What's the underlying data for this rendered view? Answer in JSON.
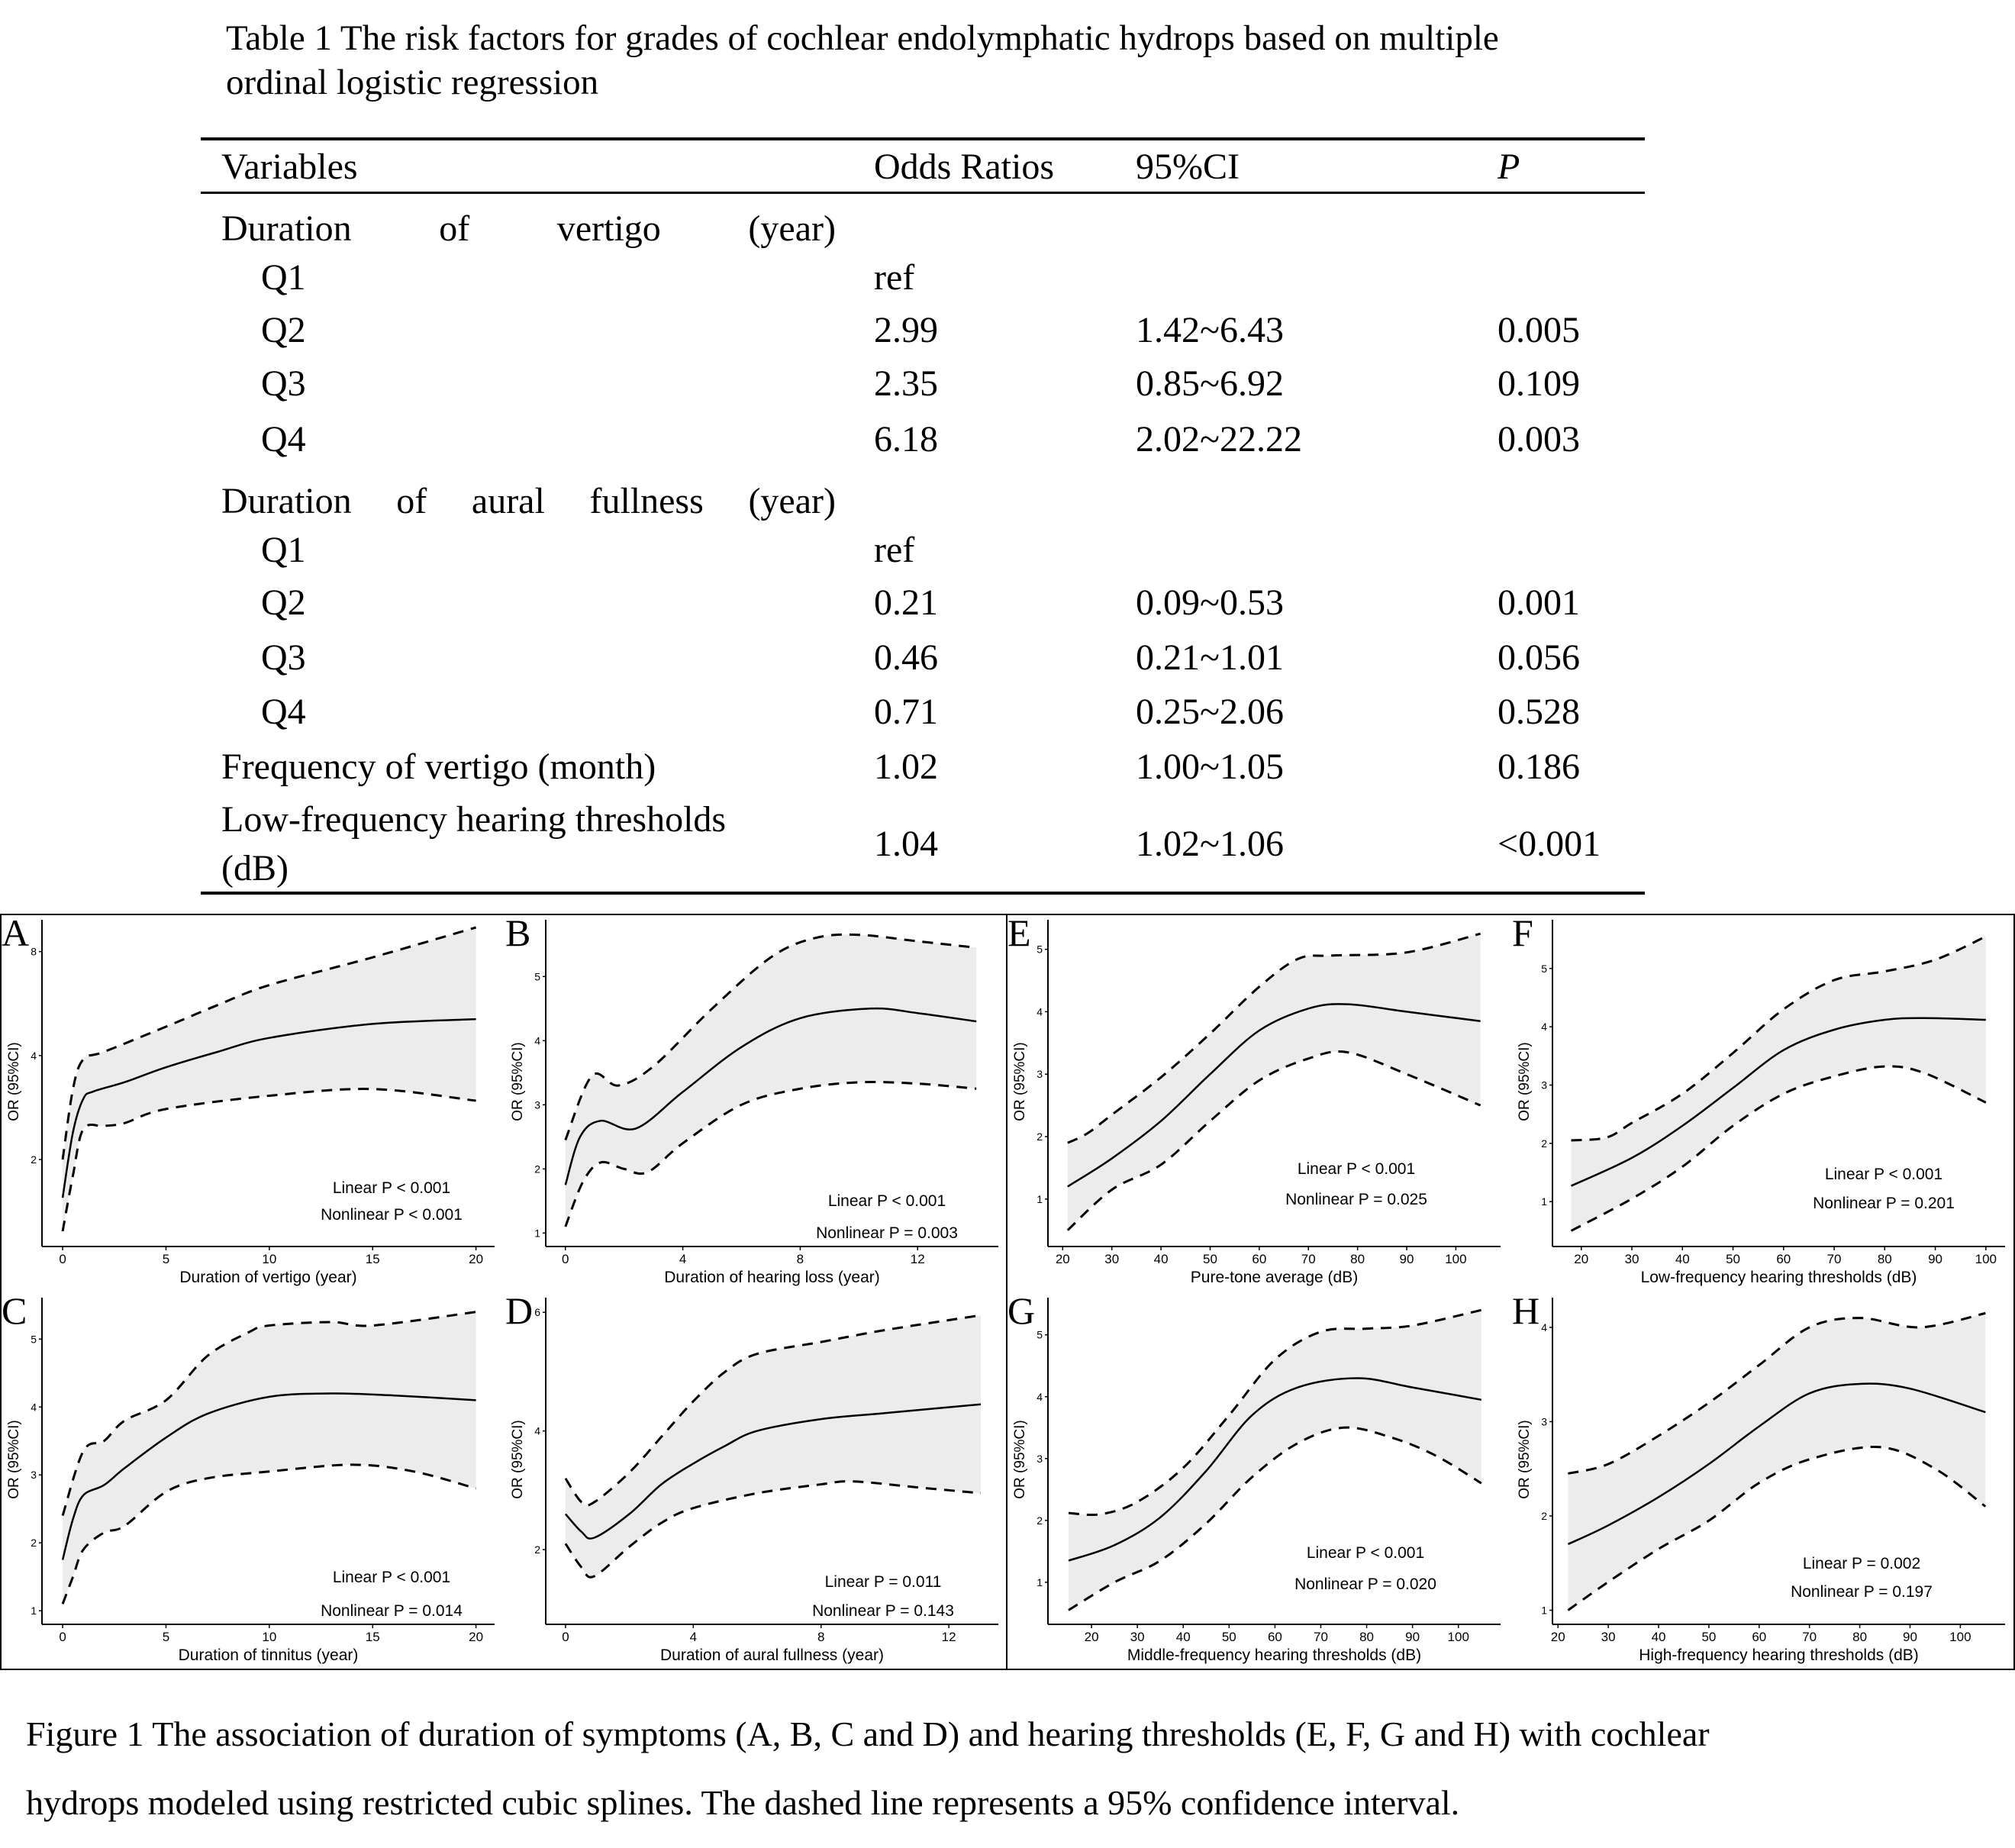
{
  "table": {
    "title_line1": "Table 1 The risk factors for grades of cochlear endolymphatic hydrops based on multiple",
    "title_line2": "ordinal logistic regression",
    "headers": {
      "variables": "Variables",
      "or": "Odds Ratios",
      "ci": "95%CI",
      "p": "P"
    },
    "group1": {
      "words": [
        "Duration",
        "of",
        "vertigo",
        "(year)"
      ],
      "rows": [
        {
          "label": "Q1",
          "or": "ref",
          "ci": "",
          "p": ""
        },
        {
          "label": "Q2",
          "or": "2.99",
          "ci": "1.42~6.43",
          "p": "0.005"
        },
        {
          "label": "Q3",
          "or": "2.35",
          "ci": "0.85~6.92",
          "p": "0.109"
        },
        {
          "label": "Q4",
          "or": "6.18",
          "ci": "2.02~22.22",
          "p": "0.003"
        }
      ]
    },
    "group2": {
      "words": [
        "Duration",
        "of",
        "aural",
        "fullness",
        "(year)"
      ],
      "rows": [
        {
          "label": "Q1",
          "or": "ref",
          "ci": "",
          "p": ""
        },
        {
          "label": "Q2",
          "or": "0.21",
          "ci": "0.09~0.53",
          "p": "0.001"
        },
        {
          "label": "Q3",
          "or": "0.46",
          "ci": "0.21~1.01",
          "p": "0.056"
        },
        {
          "label": "Q4",
          "or": "0.71",
          "ci": "0.25~2.06",
          "p": "0.528"
        }
      ]
    },
    "freq_row": {
      "label": "Frequency of vertigo (month)",
      "or": "1.02",
      "ci": "1.00~1.05",
      "p": "0.186"
    },
    "lowfreq_row": {
      "label_line1": "Low-frequency hearing thresholds",
      "label_line2": "(dB)",
      "or": "1.04",
      "ci": "1.02~1.06",
      "p": "<0.001"
    }
  },
  "caption": {
    "line1": "Figure 1 The association of duration of symptoms (A, B, C and D) and hearing thresholds (E, F, G and H) with cochlear",
    "line2": "hydrops modeled using restricted cubic splines. The dashed line represents a 95% confidence interval."
  },
  "chart_data": [
    {
      "panel": "A",
      "type": "line",
      "xlabel": "Duration of vertigo (year)",
      "ylabel": "OR (95%CI)",
      "yscale": "log",
      "xlim": [
        -1,
        20.9
      ],
      "ylim": [
        1.12,
        10.3
      ],
      "xticks": [
        0,
        5,
        10,
        15,
        20
      ],
      "yticks": [
        2,
        4,
        8
      ],
      "linear_p": "Linear P < 0.001",
      "nonlinear_p": "Nonlinear P < 0.001",
      "estimate": [
        [
          0,
          1.55
        ],
        [
          0.5,
          2.4
        ],
        [
          1,
          3.0
        ],
        [
          1.5,
          3.15
        ],
        [
          3,
          3.35
        ],
        [
          5,
          3.7
        ],
        [
          7.5,
          4.1
        ],
        [
          10,
          4.5
        ],
        [
          15,
          4.94
        ],
        [
          20,
          5.1
        ]
      ],
      "upper": [
        [
          0,
          2.0
        ],
        [
          0.5,
          3.2
        ],
        [
          1,
          3.9
        ],
        [
          2,
          4.1
        ],
        [
          5,
          4.85
        ],
        [
          7.5,
          5.6
        ],
        [
          10,
          6.4
        ],
        [
          15,
          7.7
        ],
        [
          20,
          9.4
        ]
      ],
      "lower": [
        [
          0,
          1.24
        ],
        [
          0.5,
          1.8
        ],
        [
          1,
          2.45
        ],
        [
          2,
          2.5
        ],
        [
          3,
          2.55
        ],
        [
          5,
          2.8
        ],
        [
          10,
          3.06
        ],
        [
          15,
          3.2
        ],
        [
          20,
          2.96
        ]
      ]
    },
    {
      "panel": "B",
      "type": "line",
      "xlabel": "Duration of hearing loss (year)",
      "ylabel": "OR (95%CI)",
      "yscale": "linear",
      "xlim": [
        -0.67,
        14.75
      ],
      "ylim": [
        0.79,
        5.98
      ],
      "xticks": [
        0,
        4,
        8,
        12
      ],
      "yticks": [
        1,
        2,
        3,
        4,
        5
      ],
      "linear_p": "Linear P < 0.001",
      "nonlinear_p": "Nonlinear P = 0.003",
      "estimate": [
        [
          0,
          1.75
        ],
        [
          0.5,
          2.5
        ],
        [
          1.2,
          2.75
        ],
        [
          2.4,
          2.63
        ],
        [
          4,
          3.2
        ],
        [
          6,
          3.9
        ],
        [
          8,
          4.35
        ],
        [
          10.4,
          4.5
        ],
        [
          12,
          4.43
        ],
        [
          14,
          4.3
        ]
      ],
      "upper": [
        [
          0,
          2.45
        ],
        [
          0.9,
          3.45
        ],
        [
          1.8,
          3.3
        ],
        [
          3,
          3.6
        ],
        [
          5,
          4.5
        ],
        [
          7,
          5.3
        ],
        [
          8.5,
          5.6
        ],
        [
          10,
          5.65
        ],
        [
          12,
          5.55
        ],
        [
          14,
          5.45
        ]
      ],
      "lower": [
        [
          0,
          1.1
        ],
        [
          0.6,
          1.8
        ],
        [
          1.2,
          2.1
        ],
        [
          2,
          2.0
        ],
        [
          2.8,
          1.95
        ],
        [
          4,
          2.4
        ],
        [
          6,
          3.0
        ],
        [
          8,
          3.25
        ],
        [
          10,
          3.35
        ],
        [
          12,
          3.33
        ],
        [
          14,
          3.25
        ]
      ]
    },
    {
      "panel": "C",
      "type": "line",
      "xlabel": "Duration of tinnitus (year)",
      "ylabel": "OR (95%CI)",
      "yscale": "linear",
      "xlim": [
        -1,
        20.9
      ],
      "ylim": [
        0.8,
        5.7
      ],
      "xticks": [
        0,
        5,
        10,
        15,
        20
      ],
      "yticks": [
        1,
        2,
        3,
        4,
        5
      ],
      "linear_p": "Linear P < 0.001",
      "nonlinear_p": "Nonlinear P = 0.014",
      "estimate": [
        [
          0,
          1.75
        ],
        [
          0.5,
          2.35
        ],
        [
          1,
          2.7
        ],
        [
          2,
          2.85
        ],
        [
          3,
          3.1
        ],
        [
          5,
          3.55
        ],
        [
          7,
          3.9
        ],
        [
          10,
          4.15
        ],
        [
          13,
          4.2
        ],
        [
          16,
          4.17
        ],
        [
          20,
          4.1
        ]
      ],
      "upper": [
        [
          0,
          2.4
        ],
        [
          1,
          3.35
        ],
        [
          2,
          3.5
        ],
        [
          3,
          3.8
        ],
        [
          5,
          4.1
        ],
        [
          7,
          4.75
        ],
        [
          9,
          5.1
        ],
        [
          10,
          5.2
        ],
        [
          13,
          5.25
        ],
        [
          15,
          5.2
        ],
        [
          20,
          5.4
        ]
      ],
      "lower": [
        [
          0,
          1.1
        ],
        [
          0.5,
          1.5
        ],
        [
          1,
          1.9
        ],
        [
          2,
          2.15
        ],
        [
          3,
          2.25
        ],
        [
          5,
          2.75
        ],
        [
          7,
          2.95
        ],
        [
          10,
          3.05
        ],
        [
          14,
          3.15
        ],
        [
          17,
          3.05
        ],
        [
          20,
          2.8
        ]
      ]
    },
    {
      "panel": "D",
      "type": "line",
      "xlabel": "Duration of aural fullness (year)",
      "ylabel": "OR (95%CI)",
      "yscale": "linear",
      "xlim": [
        -0.62,
        13.55
      ],
      "ylim": [
        0.74,
        6.35
      ],
      "xticks": [
        0,
        4,
        8,
        12
      ],
      "yticks": [
        2,
        4,
        6
      ],
      "linear_p": "Linear P = 0.011",
      "nonlinear_p": "Nonlinear P = 0.143",
      "estimate": [
        [
          0,
          2.6
        ],
        [
          0.5,
          2.3
        ],
        [
          0.9,
          2.2
        ],
        [
          2,
          2.6
        ],
        [
          3,
          3.1
        ],
        [
          4,
          3.45
        ],
        [
          5,
          3.75
        ],
        [
          6,
          4.0
        ],
        [
          8,
          4.2
        ],
        [
          10,
          4.3
        ],
        [
          13,
          4.45
        ]
      ],
      "upper": [
        [
          0,
          3.2
        ],
        [
          0.5,
          2.8
        ],
        [
          0.9,
          2.8
        ],
        [
          2,
          3.3
        ],
        [
          3,
          3.9
        ],
        [
          4,
          4.5
        ],
        [
          5,
          5.0
        ],
        [
          6,
          5.3
        ],
        [
          8,
          5.5
        ],
        [
          10,
          5.7
        ],
        [
          13,
          5.95
        ]
      ],
      "lower": [
        [
          0,
          2.1
        ],
        [
          0.5,
          1.7
        ],
        [
          0.9,
          1.55
        ],
        [
          2,
          2.05
        ],
        [
          3,
          2.45
        ],
        [
          4,
          2.7
        ],
        [
          6,
          2.95
        ],
        [
          8,
          3.1
        ],
        [
          9,
          3.15
        ],
        [
          11,
          3.05
        ],
        [
          13,
          2.95
        ]
      ]
    },
    {
      "panel": "E",
      "type": "line",
      "xlabel": "Pure-tone average (dB)",
      "ylabel": "OR (95%CI)",
      "yscale": "linear",
      "xlim": [
        17,
        109.1
      ],
      "ylim": [
        0.24,
        5.57
      ],
      "xticks": [
        20,
        30,
        40,
        50,
        60,
        70,
        80,
        90,
        100
      ],
      "yticks": [
        1,
        2,
        3,
        4,
        5
      ],
      "linear_p": "Linear P < 0.001",
      "nonlinear_p": "Nonlinear P = 0.025",
      "estimate": [
        [
          21,
          1.2
        ],
        [
          30,
          1.65
        ],
        [
          40,
          2.25
        ],
        [
          50,
          3.0
        ],
        [
          60,
          3.7
        ],
        [
          70,
          4.05
        ],
        [
          78,
          4.12
        ],
        [
          90,
          4.0
        ],
        [
          105,
          3.85
        ]
      ],
      "upper": [
        [
          21,
          1.9
        ],
        [
          25,
          2.05
        ],
        [
          30,
          2.35
        ],
        [
          40,
          2.95
        ],
        [
          50,
          3.65
        ],
        [
          60,
          4.4
        ],
        [
          68,
          4.85
        ],
        [
          75,
          4.9
        ],
        [
          90,
          4.95
        ],
        [
          105,
          5.25
        ]
      ],
      "lower": [
        [
          21,
          0.5
        ],
        [
          30,
          1.15
        ],
        [
          40,
          1.55
        ],
        [
          50,
          2.25
        ],
        [
          60,
          2.9
        ],
        [
          70,
          3.25
        ],
        [
          78,
          3.35
        ],
        [
          90,
          3.0
        ],
        [
          105,
          2.5
        ]
      ]
    },
    {
      "panel": "F",
      "type": "line",
      "xlabel": "Low-frequency hearing thresholds (dB)",
      "ylabel": "OR (95%CI)",
      "yscale": "linear",
      "xlim": [
        14.3,
        103.8
      ],
      "ylim": [
        0.23,
        5.94
      ],
      "xticks": [
        20,
        30,
        40,
        50,
        60,
        70,
        80,
        90,
        100
      ],
      "yticks": [
        1,
        2,
        3,
        4,
        5
      ],
      "linear_p": "Linear P < 0.001",
      "nonlinear_p": "Nonlinear P = 0.201",
      "estimate": [
        [
          18,
          1.27
        ],
        [
          30,
          1.75
        ],
        [
          40,
          2.3
        ],
        [
          50,
          2.95
        ],
        [
          60,
          3.6
        ],
        [
          70,
          3.95
        ],
        [
          80,
          4.12
        ],
        [
          88,
          4.15
        ],
        [
          100,
          4.12
        ]
      ],
      "upper": [
        [
          18,
          2.05
        ],
        [
          25,
          2.1
        ],
        [
          30,
          2.35
        ],
        [
          40,
          2.85
        ],
        [
          50,
          3.55
        ],
        [
          60,
          4.3
        ],
        [
          70,
          4.8
        ],
        [
          80,
          4.95
        ],
        [
          90,
          5.15
        ],
        [
          100,
          5.55
        ]
      ],
      "lower": [
        [
          18,
          0.5
        ],
        [
          30,
          1.05
        ],
        [
          40,
          1.6
        ],
        [
          50,
          2.3
        ],
        [
          60,
          2.85
        ],
        [
          70,
          3.15
        ],
        [
          80,
          3.32
        ],
        [
          88,
          3.2
        ],
        [
          100,
          2.7
        ]
      ]
    },
    {
      "panel": "G",
      "type": "line",
      "xlabel": "Middle-frequency hearing thresholds (dB)",
      "ylabel": "OR (95%CI)",
      "yscale": "linear",
      "xlim": [
        10.5,
        109.2
      ],
      "ylim": [
        0.32,
        5.7
      ],
      "xticks": [
        20,
        30,
        40,
        50,
        60,
        70,
        80,
        90,
        100
      ],
      "yticks": [
        1,
        2,
        3,
        4,
        5
      ],
      "linear_p": "Linear P < 0.001",
      "nonlinear_p": "Nonlinear P = 0.020",
      "estimate": [
        [
          15,
          1.35
        ],
        [
          25,
          1.6
        ],
        [
          35,
          2.05
        ],
        [
          45,
          2.8
        ],
        [
          55,
          3.7
        ],
        [
          65,
          4.15
        ],
        [
          78,
          4.3
        ],
        [
          90,
          4.15
        ],
        [
          105,
          3.95
        ]
      ],
      "upper": [
        [
          15,
          2.12
        ],
        [
          22,
          2.1
        ],
        [
          30,
          2.3
        ],
        [
          40,
          2.85
        ],
        [
          50,
          3.7
        ],
        [
          60,
          4.6
        ],
        [
          70,
          5.05
        ],
        [
          80,
          5.1
        ],
        [
          90,
          5.15
        ],
        [
          105,
          5.4
        ]
      ],
      "lower": [
        [
          15,
          0.55
        ],
        [
          25,
          1.0
        ],
        [
          35,
          1.35
        ],
        [
          45,
          1.95
        ],
        [
          55,
          2.7
        ],
        [
          65,
          3.25
        ],
        [
          75,
          3.5
        ],
        [
          85,
          3.35
        ],
        [
          95,
          3.05
        ],
        [
          105,
          2.6
        ]
      ]
    },
    {
      "panel": "H",
      "type": "line",
      "xlabel": "High-frequency hearing thresholds (dB)",
      "ylabel": "OR (95%CI)",
      "yscale": "linear",
      "xlim": [
        18.9,
        108.9
      ],
      "ylim": [
        0.85,
        4.38
      ],
      "xticks": [
        20,
        30,
        40,
        50,
        60,
        70,
        80,
        90,
        100
      ],
      "yticks": [
        1,
        2,
        3,
        4
      ],
      "linear_p": "Linear P = 0.002",
      "nonlinear_p": "Nonlinear P = 0.197",
      "estimate": [
        [
          22,
          1.7
        ],
        [
          30,
          1.9
        ],
        [
          40,
          2.2
        ],
        [
          50,
          2.55
        ],
        [
          60,
          2.95
        ],
        [
          70,
          3.3
        ],
        [
          80,
          3.4
        ],
        [
          90,
          3.35
        ],
        [
          105,
          3.1
        ]
      ],
      "upper": [
        [
          22,
          2.45
        ],
        [
          30,
          2.55
        ],
        [
          40,
          2.85
        ],
        [
          50,
          3.2
        ],
        [
          60,
          3.6
        ],
        [
          70,
          4.0
        ],
        [
          80,
          4.1
        ],
        [
          92,
          4.0
        ],
        [
          105,
          4.15
        ]
      ],
      "lower": [
        [
          22,
          1.0
        ],
        [
          30,
          1.3
        ],
        [
          40,
          1.65
        ],
        [
          50,
          1.95
        ],
        [
          60,
          2.35
        ],
        [
          70,
          2.6
        ],
        [
          84,
          2.73
        ],
        [
          95,
          2.5
        ],
        [
          105,
          2.1
        ]
      ]
    }
  ]
}
